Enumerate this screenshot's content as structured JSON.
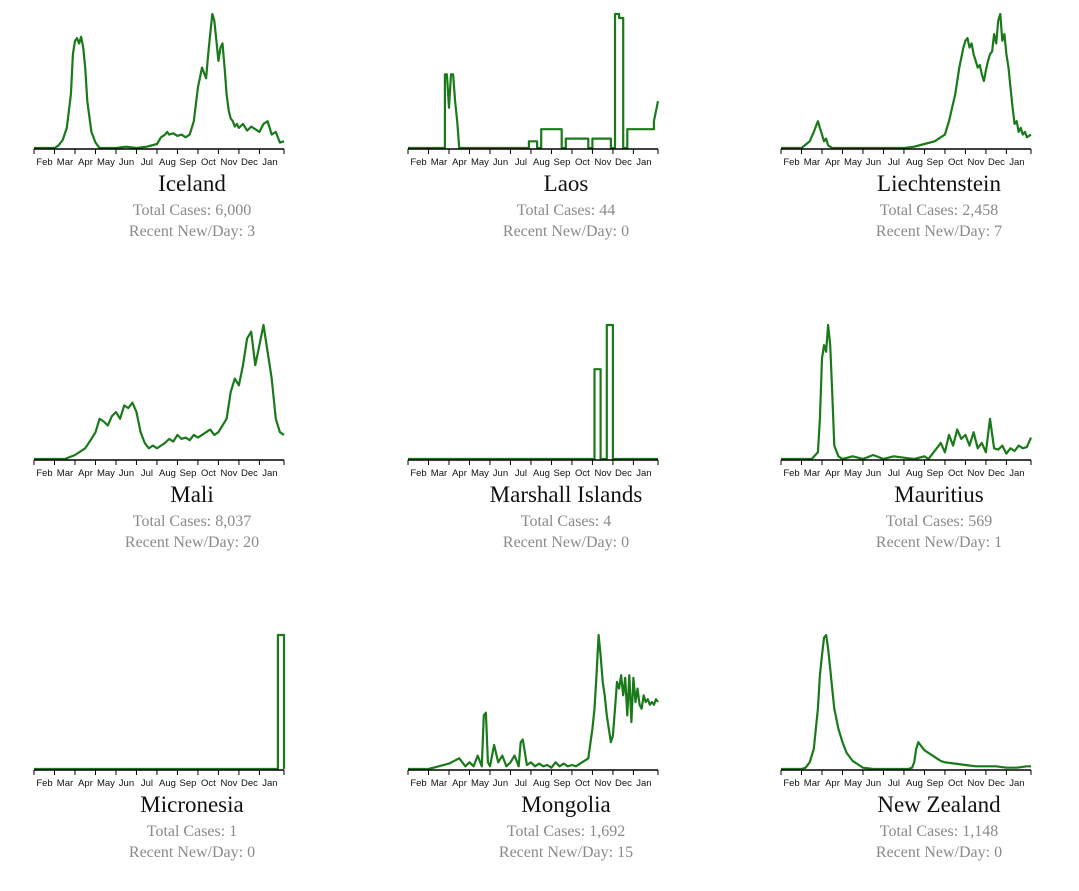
{
  "style": {
    "line_color": "#1a7a1a",
    "axis_color": "#000000",
    "stat_color": "#8a8a8a"
  },
  "months": [
    "Feb",
    "Mar",
    "Apr",
    "May",
    "Jun",
    "Jul",
    "Aug",
    "Sep",
    "Oct",
    "Nov",
    "Dec",
    "Jan"
  ],
  "countries": [
    {
      "name": "Iceland",
      "total_label": "Total Cases: 6,000",
      "recent_label": "Recent New/Day: 3"
    },
    {
      "name": "Laos",
      "total_label": "Total Cases: 44",
      "recent_label": "Recent New/Day: 0"
    },
    {
      "name": "Liechtenstein",
      "total_label": "Total Cases: 2,458",
      "recent_label": "Recent New/Day: 7"
    },
    {
      "name": "Mali",
      "total_label": "Total Cases: 8,037",
      "recent_label": "Recent New/Day: 20"
    },
    {
      "name": "Marshall Islands",
      "total_label": "Total Cases: 4",
      "recent_label": "Recent New/Day: 0"
    },
    {
      "name": "Mauritius",
      "total_label": "Total Cases: 569",
      "recent_label": "Recent New/Day: 1"
    },
    {
      "name": "Micronesia",
      "total_label": "Total Cases: 1",
      "recent_label": "Recent New/Day: 0"
    },
    {
      "name": "Mongolia",
      "total_label": "Total Cases: 1,692",
      "recent_label": "Recent New/Day: 15"
    },
    {
      "name": "New Zealand",
      "total_label": "Total Cases: 1,148",
      "recent_label": "Recent New/Day: 0"
    }
  ],
  "chart_data": [
    {
      "type": "line",
      "title": "Iceland",
      "x_range": [
        0,
        12.2
      ],
      "ylim": [
        0,
        1
      ],
      "x": [
        0,
        0.5,
        1,
        1.2,
        1.4,
        1.6,
        1.8,
        1.9,
        2,
        2.1,
        2.2,
        2.3,
        2.4,
        2.5,
        2.6,
        2.8,
        3,
        3.2,
        3.5,
        4,
        4.5,
        5,
        5.5,
        6,
        6.2,
        6.4,
        6.5,
        6.6,
        6.8,
        7,
        7.2,
        7.4,
        7.6,
        7.8,
        8,
        8.2,
        8.4,
        8.5,
        8.6,
        8.7,
        8.8,
        8.9,
        9,
        9.1,
        9.2,
        9.3,
        9.4,
        9.5,
        9.6,
        9.7,
        9.8,
        9.9,
        10,
        10.2,
        10.4,
        10.6,
        10.8,
        11,
        11.2,
        11.4,
        11.6,
        11.8,
        12,
        12.2
      ],
      "y": [
        0,
        0,
        0,
        0.02,
        0.06,
        0.15,
        0.4,
        0.7,
        0.8,
        0.82,
        0.78,
        0.83,
        0.75,
        0.6,
        0.35,
        0.12,
        0.04,
        0,
        0,
        0,
        0.01,
        0,
        0.01,
        0.03,
        0.08,
        0.1,
        0.12,
        0.1,
        0.11,
        0.09,
        0.1,
        0.08,
        0.1,
        0.2,
        0.45,
        0.6,
        0.52,
        0.7,
        0.85,
        1,
        0.95,
        0.8,
        0.65,
        0.75,
        0.78,
        0.6,
        0.4,
        0.28,
        0.22,
        0.2,
        0.16,
        0.18,
        0.15,
        0.18,
        0.13,
        0.16,
        0.14,
        0.12,
        0.18,
        0.2,
        0.1,
        0.12,
        0.04,
        0.05
      ]
    },
    {
      "type": "line",
      "title": "Laos",
      "x_range": [
        0,
        12.2
      ],
      "ylim": [
        0,
        1
      ],
      "x": [
        0,
        1.8,
        1.8,
        1.9,
        2,
        2.1,
        2.2,
        2.3,
        2.4,
        2.5,
        2.6,
        2.6,
        5.9,
        5.9,
        6.3,
        6.3,
        6.5,
        6.5,
        7.5,
        7.5,
        7.7,
        7.7,
        8.8,
        8.8,
        9,
        9,
        9.9,
        9.9,
        10.1,
        10.1,
        10.3,
        10.3,
        10.5,
        10.5,
        10.7,
        10.7,
        12,
        12,
        12.2
      ],
      "y": [
        0,
        0,
        0.55,
        0.55,
        0.3,
        0.55,
        0.55,
        0.35,
        0.2,
        0,
        0,
        0,
        0,
        0.05,
        0.05,
        0,
        0,
        0.14,
        0.14,
        0,
        0,
        0.07,
        0.07,
        0,
        0,
        0.07,
        0.07,
        0,
        0,
        1,
        1,
        0.97,
        0.97,
        0,
        0,
        0.14,
        0.14,
        0.2,
        0.35
      ]
    },
    {
      "type": "line",
      "title": "Liechtenstein",
      "x_range": [
        0,
        12.2
      ],
      "ylim": [
        0,
        1
      ],
      "x": [
        0,
        1,
        1.4,
        1.6,
        1.8,
        1.9,
        2,
        2.1,
        2.2,
        2.3,
        2.5,
        3,
        4,
        5,
        5.5,
        6,
        6.5,
        7,
        7.5,
        8,
        8.2,
        8.5,
        8.7,
        8.9,
        9,
        9.1,
        9.2,
        9.3,
        9.4,
        9.5,
        9.6,
        9.7,
        9.8,
        9.9,
        10,
        10.1,
        10.2,
        10.3,
        10.4,
        10.5,
        10.6,
        10.7,
        10.8,
        10.9,
        11,
        11.1,
        11.2,
        11.3,
        11.4,
        11.5,
        11.6,
        11.7,
        11.8,
        11.9,
        12,
        12.2
      ],
      "y": [
        0,
        0,
        0.05,
        0.12,
        0.2,
        0.15,
        0.1,
        0.05,
        0.07,
        0.02,
        0,
        0,
        0,
        0,
        0,
        0,
        0.01,
        0.03,
        0.05,
        0.1,
        0.2,
        0.4,
        0.6,
        0.75,
        0.8,
        0.82,
        0.75,
        0.78,
        0.7,
        0.65,
        0.6,
        0.62,
        0.55,
        0.5,
        0.58,
        0.65,
        0.7,
        0.72,
        0.85,
        0.78,
        0.95,
        1,
        0.8,
        0.85,
        0.7,
        0.6,
        0.45,
        0.3,
        0.18,
        0.2,
        0.12,
        0.15,
        0.1,
        0.12,
        0.08,
        0.1
      ]
    },
    {
      "type": "line",
      "title": "Mali",
      "x_range": [
        0,
        12.2
      ],
      "ylim": [
        0,
        1
      ],
      "x": [
        0,
        1.5,
        2,
        2.5,
        2.8,
        3,
        3.2,
        3.4,
        3.6,
        3.8,
        4,
        4.2,
        4.4,
        4.6,
        4.8,
        5,
        5.2,
        5.4,
        5.6,
        5.8,
        6,
        6.2,
        6.4,
        6.6,
        6.8,
        7,
        7.2,
        7.4,
        7.6,
        7.8,
        8,
        8.2,
        8.4,
        8.6,
        8.8,
        9,
        9.2,
        9.4,
        9.6,
        9.8,
        10,
        10.2,
        10.4,
        10.6,
        10.8,
        11,
        11.2,
        11.4,
        11.6,
        11.8,
        12,
        12.2
      ],
      "y": [
        0,
        0,
        0.03,
        0.08,
        0.15,
        0.2,
        0.3,
        0.28,
        0.25,
        0.32,
        0.35,
        0.3,
        0.4,
        0.38,
        0.42,
        0.35,
        0.2,
        0.12,
        0.08,
        0.1,
        0.08,
        0.1,
        0.12,
        0.15,
        0.13,
        0.18,
        0.15,
        0.16,
        0.14,
        0.18,
        0.16,
        0.18,
        0.2,
        0.22,
        0.18,
        0.2,
        0.25,
        0.3,
        0.5,
        0.6,
        0.55,
        0.7,
        0.9,
        0.95,
        0.7,
        0.85,
        1,
        0.8,
        0.6,
        0.3,
        0.2,
        0.18
      ]
    },
    {
      "type": "line",
      "title": "Marshall Islands",
      "x_range": [
        0,
        12.2
      ],
      "ylim": [
        0,
        1
      ],
      "x": [
        0,
        9.1,
        9.1,
        9.4,
        9.4,
        9.7,
        9.7,
        10,
        10,
        12.2
      ],
      "y": [
        0,
        0,
        0.67,
        0.67,
        0,
        0,
        1,
        1,
        0,
        0
      ]
    },
    {
      "type": "line",
      "title": "Mauritius",
      "x_range": [
        0,
        12.2
      ],
      "ylim": [
        0,
        1
      ],
      "x": [
        0,
        1.5,
        1.8,
        1.9,
        2,
        2.1,
        2.2,
        2.3,
        2.4,
        2.5,
        2.6,
        2.8,
        3,
        3.5,
        4,
        4.5,
        5,
        5.5,
        6,
        6.5,
        7,
        7.2,
        7.4,
        7.6,
        7.8,
        8,
        8.2,
        8.4,
        8.6,
        8.8,
        9,
        9.2,
        9.4,
        9.6,
        9.8,
        10,
        10.2,
        10.4,
        10.6,
        10.8,
        11,
        11.2,
        11.4,
        11.6,
        11.8,
        12,
        12.2
      ],
      "y": [
        0,
        0,
        0.05,
        0.3,
        0.75,
        0.85,
        0.8,
        1,
        0.85,
        0.5,
        0.1,
        0.02,
        0,
        0.02,
        0,
        0.03,
        0,
        0.02,
        0.01,
        0,
        0.02,
        0,
        0.04,
        0.08,
        0.12,
        0.05,
        0.18,
        0.1,
        0.22,
        0.15,
        0.18,
        0.1,
        0.2,
        0.08,
        0.12,
        0.05,
        0.3,
        0.08,
        0.07,
        0.1,
        0.04,
        0.08,
        0.06,
        0.1,
        0.08,
        0.09,
        0.16
      ]
    },
    {
      "type": "line",
      "title": "Micronesia",
      "x_range": [
        0,
        12.2
      ],
      "ylim": [
        0,
        1
      ],
      "x": [
        0,
        11.9,
        11.9,
        12.2,
        12.2
      ],
      "y": [
        0,
        0,
        1,
        1,
        0
      ]
    },
    {
      "type": "line",
      "title": "Mongolia",
      "x_range": [
        0,
        12.2
      ],
      "ylim": [
        0,
        1
      ],
      "x": [
        0,
        1,
        1.5,
        2,
        2.5,
        2.8,
        3,
        3.2,
        3.4,
        3.6,
        3.7,
        3.8,
        3.9,
        4,
        4.2,
        4.4,
        4.6,
        4.8,
        5,
        5.2,
        5.4,
        5.5,
        5.6,
        5.8,
        6,
        6.2,
        6.4,
        6.6,
        6.8,
        7,
        7.2,
        7.4,
        7.6,
        7.8,
        8,
        8.2,
        8.5,
        8.8,
        9,
        9.1,
        9.2,
        9.3,
        9.4,
        9.5,
        9.6,
        9.7,
        9.8,
        9.9,
        10,
        10.1,
        10.2,
        10.3,
        10.4,
        10.5,
        10.6,
        10.7,
        10.8,
        10.9,
        11,
        11.1,
        11.2,
        11.3,
        11.4,
        11.5,
        11.6,
        11.7,
        11.8,
        11.9,
        12,
        12.1,
        12.2
      ],
      "y": [
        0,
        0,
        0.02,
        0.04,
        0.08,
        0.02,
        0.05,
        0.02,
        0.1,
        0.02,
        0.4,
        0.42,
        0.05,
        0.02,
        0.18,
        0.05,
        0.1,
        0.02,
        0.05,
        0.1,
        0.02,
        0.2,
        0.22,
        0.03,
        0.05,
        0.02,
        0.04,
        0.02,
        0.03,
        0.01,
        0.05,
        0.02,
        0.04,
        0.02,
        0.03,
        0.02,
        0.05,
        0.08,
        0.3,
        0.45,
        0.7,
        1,
        0.85,
        0.65,
        0.55,
        0.4,
        0.3,
        0.2,
        0.25,
        0.45,
        0.65,
        0.6,
        0.7,
        0.55,
        0.68,
        0.4,
        0.7,
        0.35,
        0.68,
        0.5,
        0.6,
        0.48,
        0.45,
        0.55,
        0.5,
        0.52,
        0.48,
        0.5,
        0.48,
        0.52,
        0.5
      ]
    },
    {
      "type": "line",
      "title": "New Zealand",
      "x_range": [
        0,
        12.2
      ],
      "ylim": [
        0,
        1
      ],
      "x": [
        0,
        1,
        1.2,
        1.4,
        1.6,
        1.8,
        1.9,
        2,
        2.1,
        2.2,
        2.3,
        2.4,
        2.5,
        2.6,
        2.8,
        3,
        3.2,
        3.5,
        3.8,
        4,
        4.5,
        5,
        5.5,
        6,
        6.2,
        6.4,
        6.5,
        6.6,
        6.7,
        6.8,
        7,
        7.2,
        7.4,
        7.6,
        7.8,
        8,
        8.5,
        9,
        9.5,
        10,
        10.5,
        11,
        11.5,
        12,
        12.2
      ],
      "y": [
        0,
        0,
        0.01,
        0.05,
        0.15,
        0.45,
        0.7,
        0.85,
        0.98,
        1,
        0.9,
        0.75,
        0.6,
        0.45,
        0.3,
        0.2,
        0.12,
        0.06,
        0.03,
        0.01,
        0,
        0,
        0,
        0,
        0,
        0.01,
        0.05,
        0.15,
        0.2,
        0.18,
        0.14,
        0.12,
        0.1,
        0.08,
        0.06,
        0.05,
        0.04,
        0.03,
        0.02,
        0.02,
        0.02,
        0.01,
        0.01,
        0.02,
        0.02
      ]
    }
  ]
}
